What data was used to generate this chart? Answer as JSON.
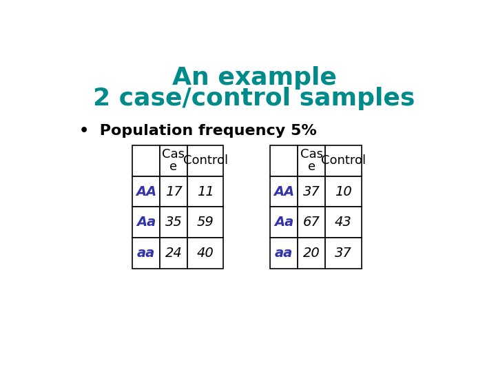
{
  "title_line1": "An example",
  "title_line2": "2 case/control samples",
  "title_color": "#008B8B",
  "bullet_text": "Population frequency 5%",
  "background_color": "#ffffff",
  "table1": {
    "headers": [
      "",
      "Cas\ne",
      "Control"
    ],
    "rows": [
      [
        "AA",
        "17",
        "11"
      ],
      [
        "Aa",
        "35",
        "59"
      ],
      [
        "aa",
        "24",
        "40"
      ]
    ]
  },
  "table2": {
    "headers": [
      "",
      "Cas\ne",
      "Control"
    ],
    "rows": [
      [
        "AA",
        "37",
        "10"
      ],
      [
        "Aa",
        "67",
        "43"
      ],
      [
        "aa",
        "20",
        "37"
      ]
    ]
  },
  "genotype_color": "#3333aa",
  "data_color": "#000000",
  "header_color": "#000000",
  "title_fontsize": 26,
  "bullet_fontsize": 16,
  "table_fontsize": 13
}
